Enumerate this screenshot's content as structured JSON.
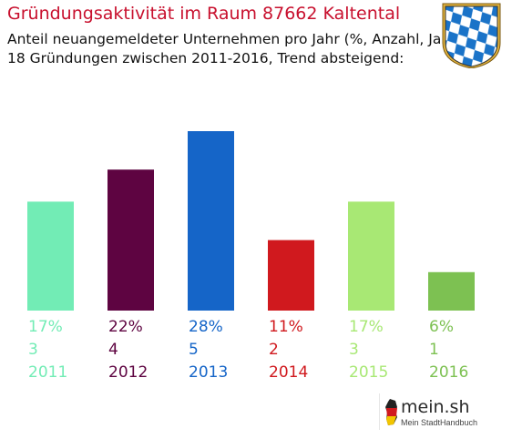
{
  "header": {
    "title": "Gründungsaktivität im Raum 87662 Kaltental",
    "subtitle_line1": "Anteil neuangemeldeter Unternehmen pro Jahr (%, Anzahl, Jahr)",
    "subtitle_line2": "18 Gründungen zwischen 2011-2016, Trend absteigend:"
  },
  "crest": {
    "icon": "bavaria-coat-of-arms-icon",
    "colors": [
      "#1a73c8",
      "#ffffff"
    ]
  },
  "logo": {
    "main": "mein.sh",
    "sub": "Mein StadtHandbuch"
  },
  "chart_data": {
    "type": "bar",
    "categories": [
      "2011",
      "2012",
      "2013",
      "2014",
      "2015",
      "2016"
    ],
    "percent_labels": [
      "17%",
      "22%",
      "28%",
      "11%",
      "17%",
      "6%"
    ],
    "values": [
      3,
      4,
      5,
      2,
      3,
      1
    ],
    "percentages": [
      17,
      22,
      28,
      11,
      17,
      6
    ],
    "colors": [
      "#72ecb5",
      "#5e0441",
      "#1565c8",
      "#d0191e",
      "#a8e874",
      "#7dc152"
    ]
  }
}
